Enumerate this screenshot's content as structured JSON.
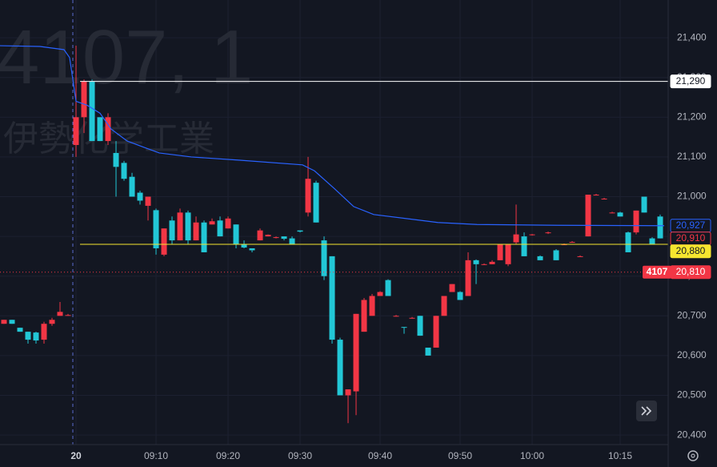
{
  "chart_data": {
    "type": "candlestick",
    "watermark_line1": "4107, 1",
    "watermark_line2": "伊勢化学工業",
    "symbol": "4107",
    "up_color": "#f23645",
    "down_color": "#22c7d6",
    "grid": true,
    "xlim": [
      -0.5,
      83
    ],
    "xticks": [
      {
        "value": 9,
        "label": "20"
      },
      {
        "value": 19,
        "label": "09:10"
      },
      {
        "value": 28,
        "label": "09:20"
      },
      {
        "value": 37,
        "label": "09:30"
      },
      {
        "value": 47,
        "label": "09:40"
      },
      {
        "value": 57,
        "label": "09:50"
      },
      {
        "value": 66,
        "label": "10:00"
      },
      {
        "value": 77,
        "label": "10:15"
      }
    ],
    "ylim": [
      20376,
      21495
    ],
    "yticks": [
      {
        "value": 20400,
        "label": "20,400"
      },
      {
        "value": 20500,
        "label": "20,500"
      },
      {
        "value": 20600,
        "label": "20,600"
      },
      {
        "value": 20700,
        "label": "20,700"
      },
      {
        "value": 20800,
        "label": "20,800"
      },
      {
        "value": 20900,
        "label": "20,900"
      },
      {
        "value": 21000,
        "label": "21,000"
      },
      {
        "value": 21100,
        "label": "21,100"
      },
      {
        "value": 21200,
        "label": "21,200"
      },
      {
        "value": 21300,
        "label": "21,300"
      },
      {
        "value": 21400,
        "label": "21,400"
      }
    ],
    "candles": [
      [
        20680,
        20690,
        20680,
        20690
      ],
      [
        20690,
        20690,
        20680,
        20680
      ],
      [
        20670,
        20670,
        20660,
        20660
      ],
      [
        20660,
        20660,
        20630,
        20640
      ],
      [
        20658,
        20660,
        20630,
        20638
      ],
      [
        20640,
        20685,
        20630,
        20680
      ],
      [
        20680,
        20695,
        20675,
        20690
      ],
      [
        20700,
        20735,
        20700,
        20710
      ],
      [
        20700,
        20705,
        20700,
        20702
      ],
      [
        21130,
        21380,
        21100,
        21200
      ],
      [
        21200,
        21295,
        21160,
        21290
      ],
      [
        21290,
        21295,
        21140,
        21140
      ],
      [
        21200,
        21200,
        21140,
        21140
      ],
      [
        21140,
        21210,
        21130,
        21200
      ],
      [
        21110,
        21140,
        21000,
        21075
      ],
      [
        21085,
        21090,
        21040,
        21045
      ],
      [
        21050,
        21060,
        21000,
        21000
      ],
      [
        21010,
        21015,
        20980,
        20990
      ],
      [
        20977,
        21000,
        20940,
        21000
      ],
      [
        20966,
        20970,
        20854,
        20870
      ],
      [
        20854,
        20920,
        20850,
        20920
      ],
      [
        20940,
        20950,
        20880,
        20890
      ],
      [
        20890,
        20970,
        20890,
        20960
      ],
      [
        20960,
        20965,
        20880,
        20890
      ],
      [
        20890,
        20950,
        20890,
        20935
      ],
      [
        20935,
        20940,
        20860,
        20860
      ],
      [
        20930,
        20945,
        20930,
        20938
      ],
      [
        20940,
        20950,
        20900,
        20900
      ],
      [
        20920,
        20950,
        20920,
        20945
      ],
      [
        20930,
        20930,
        20870,
        20880
      ],
      [
        20880,
        20890,
        20870,
        20872
      ],
      [
        20870,
        20870,
        20860,
        20865
      ],
      [
        20890,
        20920,
        20890,
        20915
      ],
      [
        20900,
        20905,
        20900,
        20904
      ],
      [
        20896,
        20900,
        20895,
        20898
      ],
      [
        20900,
        20900,
        20890,
        20894
      ],
      [
        20895,
        20900,
        20880,
        20880
      ],
      [
        20915,
        20915,
        20910,
        20912
      ],
      [
        20960,
        21100,
        20950,
        21045
      ],
      [
        21035,
        21040,
        20935,
        20935
      ],
      [
        20890,
        20900,
        20790,
        20800
      ],
      [
        20850,
        20850,
        20630,
        20640
      ],
      [
        20640,
        20645,
        20500,
        20500
      ],
      [
        20500,
        20515,
        20430,
        20515
      ],
      [
        20510,
        20705,
        20450,
        20705
      ],
      [
        20660,
        20745,
        20660,
        20740
      ],
      [
        20700,
        20755,
        20700,
        20750
      ],
      [
        20750,
        20762,
        20750,
        20760
      ],
      [
        20790,
        20792,
        20750,
        20750
      ],
      [
        20700,
        20702,
        20698,
        20700
      ],
      [
        20672,
        20672,
        20655,
        20670
      ],
      [
        20695,
        20697,
        20693,
        20695
      ],
      [
        20700,
        20700,
        20650,
        20650
      ],
      [
        20620,
        20620,
        20600,
        20600
      ],
      [
        20620,
        20700,
        20620,
        20700
      ],
      [
        20700,
        20750,
        20700,
        20750
      ],
      [
        20760,
        20780,
        20760,
        20780
      ],
      [
        20760,
        20762,
        20740,
        20740
      ],
      [
        20750,
        20860,
        20750,
        20840
      ],
      [
        20840,
        20842,
        20780,
        20830
      ],
      [
        20830,
        20832,
        20828,
        20830
      ],
      [
        20830,
        20840,
        20830,
        20836
      ],
      [
        20840,
        20880,
        20840,
        20880
      ],
      [
        20830,
        20880,
        20825,
        20880
      ],
      [
        20885,
        20980,
        20880,
        20905
      ],
      [
        20900,
        20910,
        20850,
        20850
      ],
      [
        20904,
        20906,
        20902,
        20905
      ],
      [
        20850,
        20852,
        20840,
        20840
      ],
      [
        20908,
        20912,
        20906,
        20910
      ],
      [
        20865,
        20868,
        20840,
        20840
      ],
      [
        20880,
        20882,
        20878,
        20880
      ],
      [
        20886,
        20888,
        20884,
        20886
      ],
      [
        20850,
        20852,
        20848,
        20850
      ],
      [
        20900,
        21005,
        20900,
        21005
      ],
      [
        21005,
        21007,
        21003,
        21005
      ],
      [
        20995,
        20997,
        20993,
        20995
      ],
      [
        20960,
        20962,
        20958,
        20960
      ],
      [
        20960,
        20962,
        20950,
        20950
      ],
      [
        20910,
        20912,
        20860,
        20860
      ],
      [
        20910,
        20965,
        20905,
        20965
      ],
      [
        21000,
        21000,
        20960,
        20960
      ],
      [
        20895,
        20898,
        20880,
        20880
      ],
      [
        20950,
        20955,
        20895,
        20895
      ]
    ],
    "line": {
      "color": "#2962ff",
      "x": [
        -0.5,
        4.5,
        7.5,
        8.2,
        9,
        10.4,
        12,
        13.4,
        15.4,
        17.4,
        19.4,
        23.4,
        29.3,
        37.3,
        38.8,
        41.3,
        43.7,
        46.2,
        54.2,
        59.1,
        69.1,
        82.5
      ],
      "values": [
        21380,
        21378,
        21370,
        21350,
        21240,
        21230,
        21210,
        21170,
        21140,
        21125,
        21110,
        21100,
        21092,
        21080,
        21065,
        21020,
        20975,
        20955,
        20935,
        20930,
        20928,
        20927
      ]
    },
    "price_tags": [
      {
        "value": 21290,
        "label": "21,290",
        "bg": "#ffffff",
        "fg": "#131722",
        "border": "#ffffff",
        "line": "solid"
      },
      {
        "value": 20927,
        "label": "20,927",
        "bg": "#131722",
        "fg": "#2962ff",
        "border": "#2962ff",
        "line": "none"
      },
      {
        "value": 20910,
        "label": "20,910",
        "bg": "#131722",
        "fg": "#f23645",
        "border": "#f23645",
        "line": "none"
      },
      {
        "value": 20880,
        "label": "20,880",
        "bg": "#f5e52f",
        "fg": "#131722",
        "border": "#f5e52f",
        "line": "solid"
      },
      {
        "value": 20810,
        "label": "20,810",
        "bg": "#f23645",
        "fg": "#ffffff",
        "border": "#f23645",
        "line": "dotted"
      }
    ]
  }
}
